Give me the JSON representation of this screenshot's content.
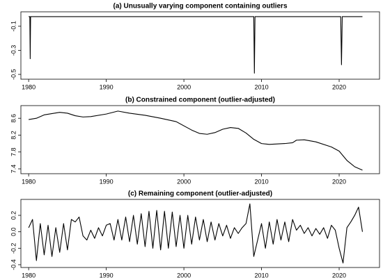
{
  "chart_data": [
    {
      "type": "line",
      "title": "(a) Unusually varying component containing outliers",
      "color": "#000000",
      "x": [
        1980.0,
        1980.15,
        1980.2,
        1980.25,
        2009.0,
        2009.08,
        2009.16,
        2020.2,
        2020.3,
        2020.4,
        2023.0
      ],
      "values": [
        -0.02,
        -0.02,
        -0.37,
        -0.02,
        -0.02,
        -0.49,
        -0.02,
        -0.02,
        -0.42,
        -0.02,
        -0.02
      ],
      "xlim": [
        1979.0,
        2025.2
      ],
      "ylim": [
        -0.54,
        0.02
      ],
      "xticks": [
        1980,
        1990,
        2000,
        2010,
        2020
      ],
      "yticks": [
        -0.1,
        -0.3,
        -0.5
      ]
    },
    {
      "type": "line",
      "title": "(b) Constrained component (outlier-adjusted)",
      "color": "#000000",
      "x": [
        1980,
        1981,
        1982,
        1984,
        1985,
        1986,
        1987,
        1988,
        1990,
        1991.5,
        1993,
        1995,
        1997,
        1999,
        2001,
        2002,
        2003,
        2004,
        2005,
        2006,
        2007,
        2008,
        2009,
        2010,
        2011,
        2013,
        2014,
        2014.5,
        2015.5,
        2017,
        2019,
        2020,
        2021,
        2022,
        2023
      ],
      "values": [
        8.57,
        8.6,
        8.68,
        8.74,
        8.72,
        8.66,
        8.63,
        8.64,
        8.7,
        8.77,
        8.72,
        8.67,
        8.6,
        8.52,
        8.32,
        8.24,
        8.22,
        8.26,
        8.34,
        8.38,
        8.36,
        8.25,
        8.1,
        8.0,
        7.98,
        8.0,
        8.02,
        8.08,
        8.09,
        8.04,
        7.92,
        7.82,
        7.6,
        7.45,
        7.37
      ],
      "xlim": [
        1979.0,
        2025.2
      ],
      "ylim": [
        7.285,
        8.9
      ],
      "xticks": [
        1980,
        1990,
        2000,
        2010,
        2020
      ],
      "yticks": [
        7.4,
        7.8,
        8.2,
        8.6
      ]
    },
    {
      "type": "line",
      "title": "(c) Remaining component (outlier-adjusted)",
      "color": "#000000",
      "x": [
        1980.0,
        1980.5,
        1981.0,
        1981.5,
        1982.0,
        1982.5,
        1983.0,
        1983.5,
        1984.0,
        1984.5,
        1985.0,
        1985.5,
        1986.0,
        1986.5,
        1987.0,
        1987.5,
        1988.0,
        1988.5,
        1989.0,
        1989.5,
        1990.0,
        1990.5,
        1991.0,
        1991.5,
        1992.0,
        1992.5,
        1993.0,
        1993.5,
        1994.0,
        1994.5,
        1995.0,
        1995.5,
        1996.0,
        1996.5,
        1997.0,
        1997.5,
        1998.0,
        1998.5,
        1999.0,
        1999.5,
        2000.0,
        2000.5,
        2001.0,
        2001.5,
        2002.0,
        2002.5,
        2003.0,
        2003.5,
        2004.0,
        2004.5,
        2005.0,
        2005.5,
        2006.0,
        2006.5,
        2007.0,
        2007.5,
        2008.0,
        2008.5,
        2009.0,
        2009.5,
        2010.0,
        2010.5,
        2011.0,
        2011.5,
        2012.0,
        2012.5,
        2013.0,
        2013.5,
        2014.0,
        2014.5,
        2015.0,
        2015.5,
        2016.0,
        2016.5,
        2017.0,
        2017.5,
        2018.0,
        2018.5,
        2019.0,
        2019.5,
        2020.0,
        2020.5,
        2021.0,
        2021.5,
        2022.0,
        2022.5,
        2023.0
      ],
      "values": [
        0.05,
        0.15,
        -0.35,
        0.1,
        -0.28,
        0.08,
        -0.3,
        0.05,
        -0.25,
        0.1,
        -0.22,
        0.15,
        0.12,
        0.18,
        -0.05,
        -0.1,
        0.02,
        -0.08,
        0.05,
        -0.05,
        0.08,
        0.1,
        -0.1,
        0.15,
        -0.1,
        0.18,
        -0.12,
        0.2,
        -0.15,
        0.22,
        -0.18,
        0.25,
        -0.2,
        0.26,
        -0.22,
        0.25,
        -0.2,
        0.24,
        -0.18,
        0.2,
        -0.2,
        0.2,
        -0.15,
        0.18,
        -0.1,
        0.15,
        -0.12,
        0.12,
        -0.1,
        0.1,
        -0.05,
        0.08,
        -0.08,
        0.05,
        -0.02,
        0.05,
        0.1,
        0.34,
        -0.3,
        -0.1,
        0.1,
        -0.2,
        0.12,
        -0.15,
        0.15,
        -0.1,
        0.12,
        -0.12,
        0.15,
        0.02,
        0.08,
        -0.02,
        0.05,
        -0.05,
        0.04,
        -0.03,
        0.05,
        -0.08,
        0.08,
        0.02,
        -0.2,
        -0.38,
        0.05,
        0.12,
        0.2,
        0.3,
        0.0
      ],
      "xlim": [
        1979.0,
        2025.2
      ],
      "ylim": [
        -0.434,
        0.394
      ],
      "xticks": [
        1980,
        1990,
        2000,
        2010,
        2020
      ],
      "yticks": [
        -0.4,
        -0.2,
        {
          "value": 0,
          "label": "0.0"
        },
        0.2
      ]
    }
  ]
}
